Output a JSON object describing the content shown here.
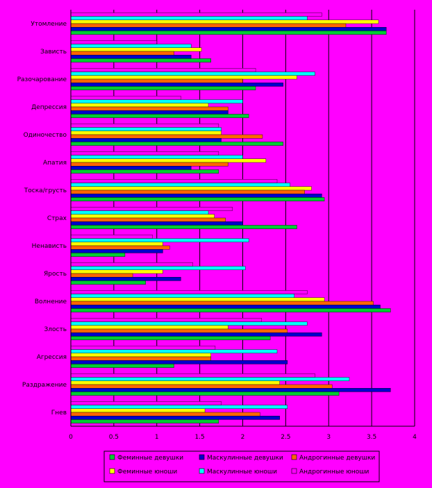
{
  "chart_data": {
    "type": "bar",
    "orientation": "horizontal",
    "background": "#ff00ff",
    "grid": true,
    "legend_position": "bottom",
    "xlim": [
      0,
      4
    ],
    "xticks": [
      "0",
      "0.5",
      "1",
      "1.5",
      "2",
      "2.5",
      "3",
      "3.5",
      "4"
    ],
    "categories": [
      "Утомление",
      "Зависть",
      "Разочарование",
      "Депрессия",
      "Одиночество",
      "Апатия",
      "Тоска/грусть",
      "Страх",
      "Ненависть",
      "Ярость",
      "Волнение",
      "Злость",
      "Агрессия",
      "Раздражение",
      "Гнев"
    ],
    "series": [
      {
        "name": "Андрогинные юноши",
        "color": "#ff00ff",
        "values": [
          2.92,
          1.0,
          2.15,
          1.28,
          1.72,
          1.72,
          2.4,
          1.88,
          0.95,
          1.42,
          2.75,
          2.22,
          1.68,
          2.84,
          1.75
        ]
      },
      {
        "name": "Маскулинные юноши",
        "color": "#00ffff",
        "values": [
          2.75,
          1.4,
          2.84,
          2.0,
          1.75,
          2.0,
          2.55,
          1.6,
          2.07,
          2.03,
          2.6,
          2.75,
          2.4,
          3.24,
          2.52
        ]
      },
      {
        "name": "Феминные юноши",
        "color": "#ffff00",
        "values": [
          3.58,
          1.52,
          2.63,
          1.6,
          1.75,
          2.27,
          2.8,
          1.67,
          1.07,
          1.07,
          2.95,
          1.83,
          1.63,
          2.43,
          1.56
        ]
      },
      {
        "name": "Андрогинные девушки",
        "color": "#ff6600",
        "values": [
          3.2,
          1.2,
          2.0,
          1.83,
          2.23,
          1.83,
          2.72,
          1.8,
          1.15,
          0.72,
          3.52,
          2.52,
          1.63,
          3.04,
          2.2
        ]
      },
      {
        "name": "Маскулинные девушки",
        "color": "#0000cc",
        "values": [
          3.67,
          1.4,
          2.47,
          1.83,
          1.75,
          1.4,
          2.92,
          2.0,
          1.07,
          1.28,
          3.6,
          2.92,
          2.52,
          3.72,
          2.43
        ]
      },
      {
        "name": "Феминные девушки",
        "color": "#00cc33",
        "values": [
          3.67,
          1.63,
          2.15,
          2.07,
          2.47,
          1.72,
          2.95,
          2.63,
          0.63,
          0.87,
          3.72,
          2.32,
          1.2,
          3.12,
          1.72
        ]
      }
    ],
    "legend_order": [
      "Феминные девушки",
      "Маскулинные девушки",
      "Андрогинные девушки",
      "Феминные юноши",
      "Маскулинные юноши",
      "Андрогинные юноши"
    ]
  }
}
